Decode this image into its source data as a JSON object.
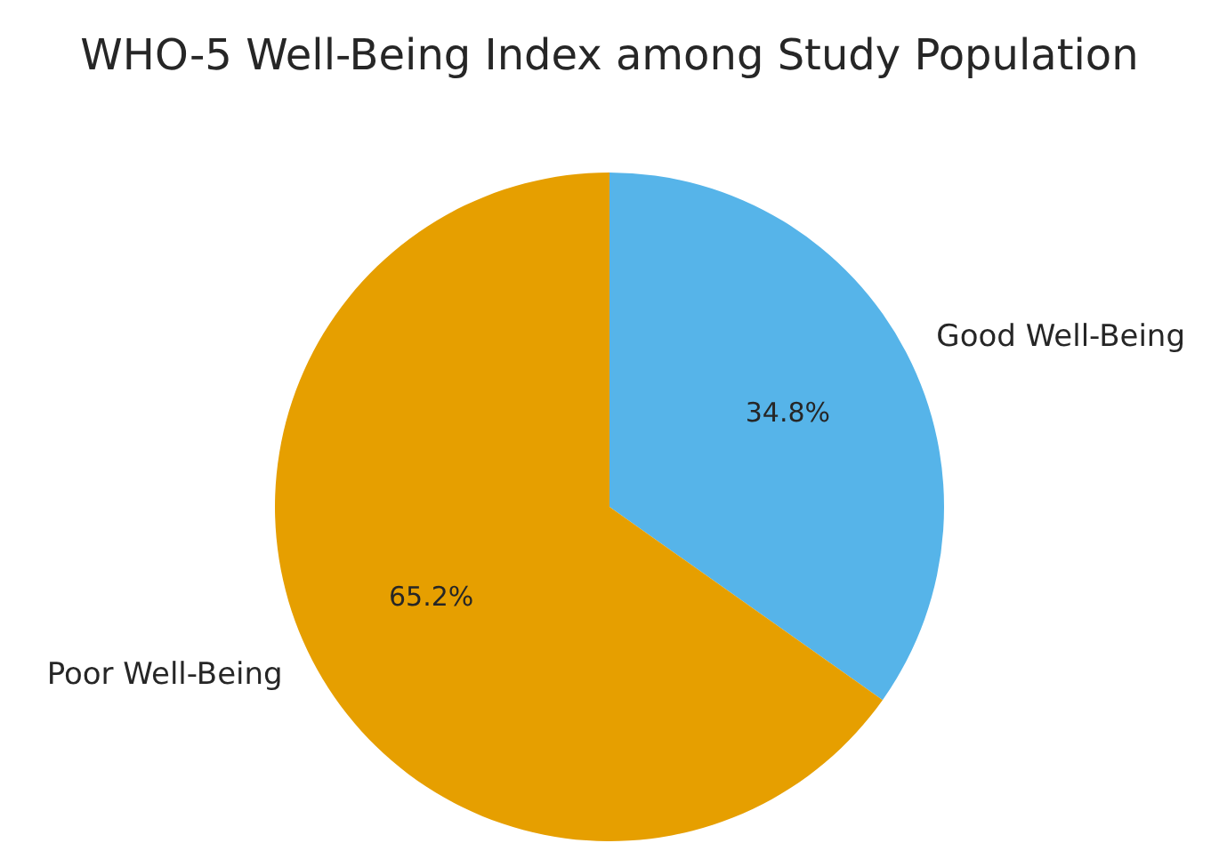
{
  "chart_data": {
    "type": "pie",
    "title": "WHO-5 Well-Being Index among Study Population",
    "categories": [
      "Good Well-Being",
      "Poor Well-Being"
    ],
    "values": [
      34.8,
      65.2
    ],
    "colors": [
      "#56b4e9",
      "#e69f00"
    ],
    "value_labels": [
      "34.8%",
      "65.2%"
    ],
    "legend": false
  }
}
